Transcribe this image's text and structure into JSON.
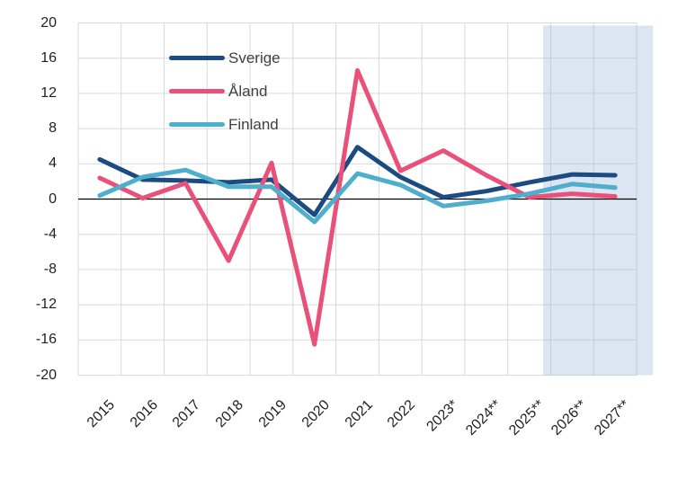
{
  "chart_data": {
    "type": "line",
    "title": "",
    "xlabel": "",
    "ylabel": "",
    "categories": [
      "2015",
      "2016",
      "2017",
      "2018",
      "2019",
      "2020",
      "2021",
      "2022",
      "2023*",
      "2024**",
      "2025**",
      "2026**",
      "2027**"
    ],
    "series": [
      {
        "name": "Sverige",
        "color": "#1C4B82",
        "values": [
          4.5,
          2.2,
          2.1,
          1.9,
          2.2,
          -1.8,
          5.9,
          2.5,
          0.2,
          0.9,
          1.9,
          2.8,
          2.7
        ]
      },
      {
        "name": "Åland",
        "color": "#E9507A",
        "values": [
          2.4,
          0.1,
          1.8,
          -7.0,
          4.1,
          -16.5,
          14.6,
          3.2,
          5.5,
          2.7,
          0.2,
          0.6,
          0.3
        ]
      },
      {
        "name": "Finland",
        "color": "#4FAECB",
        "values": [
          0.4,
          2.5,
          3.3,
          1.4,
          1.4,
          -2.6,
          2.9,
          1.6,
          -0.8,
          -0.2,
          0.6,
          1.7,
          1.3
        ]
      }
    ],
    "ylim": [
      -20,
      20
    ],
    "ytick_step": 4,
    "ytick_labels": [
      "20",
      "16",
      "12",
      "8",
      "4",
      "0",
      "-4",
      "-8",
      "-12",
      "-16",
      "-20"
    ],
    "grid": true,
    "gridline_color": "#D9D9D9",
    "zero_line_color": "#000000",
    "axis_text_color": "#1f1f1f",
    "legend_position": "inside-top-left",
    "forecast_band": {
      "covers_categories": [
        "2026**",
        "2027**"
      ],
      "fill_color": "#DCE6F2"
    }
  }
}
